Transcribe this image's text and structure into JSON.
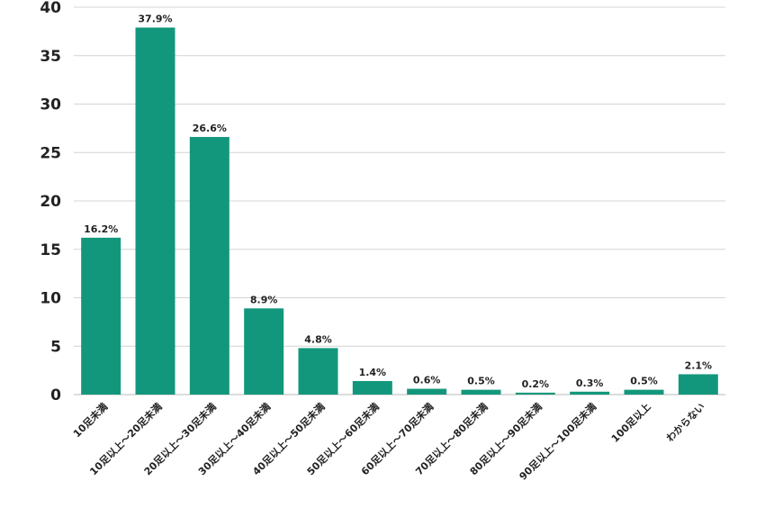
{
  "chart_data": {
    "type": "bar",
    "title": "",
    "xlabel": "",
    "ylabel": "",
    "categories": [
      "10足未満",
      "10足以上～20足未満",
      "20足以上～30足未満",
      "30足以上～40足未満",
      "40足以上～50足未満",
      "50足以上～60足未満",
      "60足以上～70足未満",
      "70足以上～80足未満",
      "80足以上～90足未満",
      "90足以上～100足未満",
      "100足以上",
      "わからない"
    ],
    "values": [
      16.2,
      37.9,
      26.6,
      8.9,
      4.8,
      1.4,
      0.6,
      0.5,
      0.2,
      0.3,
      0.5,
      2.1
    ],
    "data_labels": [
      "16.2%",
      "37.9%",
      "26.6%",
      "8.9%",
      "4.8%",
      "1.4%",
      "0.6%",
      "0.5%",
      "0.2%",
      "0.3%",
      "0.5%",
      "2.1%"
    ],
    "ylim": [
      0,
      40
    ],
    "yticks": [
      0,
      5,
      10,
      15,
      20,
      25,
      30,
      35,
      40
    ],
    "grid": true,
    "legend": "none",
    "colors": {
      "bar": "#13977c",
      "grid": "#d4d4d4",
      "text": "#222222"
    }
  }
}
